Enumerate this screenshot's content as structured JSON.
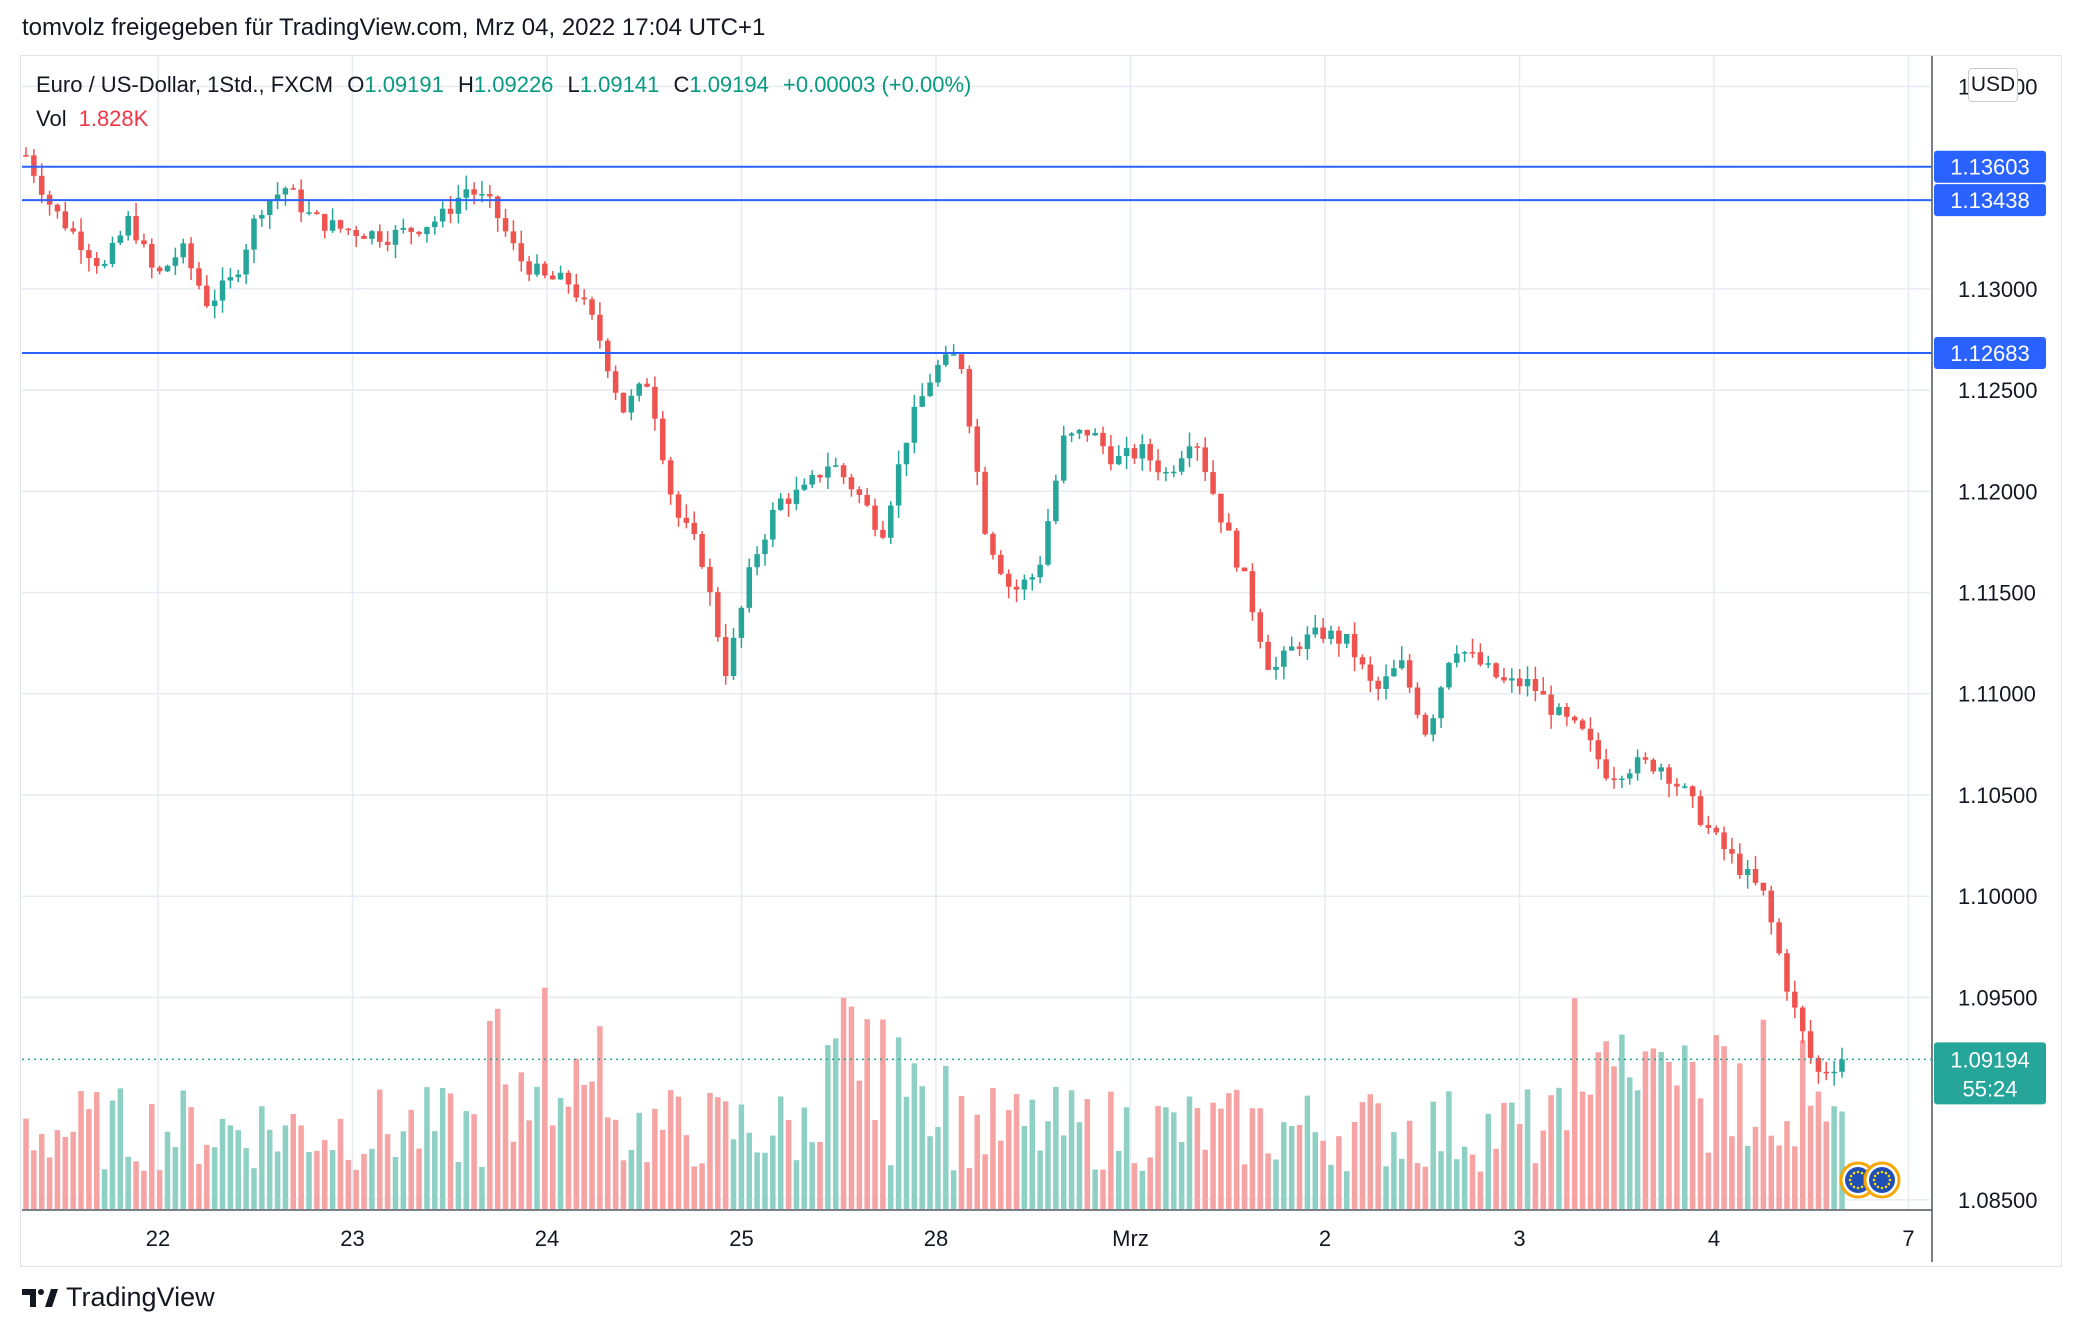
{
  "header": {
    "text": "tomvolz freigegeben für TradingView.com, Mrz 04, 2022 17:04 UTC+1"
  },
  "legend": {
    "symbol": "Euro / US-Dollar, 1Std., FXCM",
    "open_label": "O",
    "open": "1.09191",
    "high_label": "H",
    "high": "1.09226",
    "low_label": "L",
    "low": "1.09141",
    "close_label": "C",
    "close": "1.09194",
    "change": "+0.00003 (+0.00%)"
  },
  "volume_legend": {
    "label": "Vol",
    "value": "1.828K"
  },
  "currency": "USD",
  "price_tag": {
    "price": "1.09194",
    "countdown": "55:24"
  },
  "colors": {
    "up": "#26a69a",
    "down": "#ef5350",
    "up_vol": "#8fd0c5",
    "down_vol": "#f5a3a3",
    "hline": "#2962ff",
    "grid": "#e6ecf2"
  },
  "footer": {
    "brand": "TradingView"
  },
  "chart_data": {
    "type": "candlestick",
    "title": "Euro / US-Dollar, 1Std., FXCM",
    "y_axis_ticks": [
      "1.14000",
      "1.13000",
      "1.12500",
      "1.12000",
      "1.11500",
      "1.11000",
      "1.10500",
      "1.10000",
      "1.09500",
      "1.08500"
    ],
    "ylim": [
      1.0845,
      1.1415
    ],
    "x_axis_ticks": [
      "22",
      "23",
      "24",
      "25",
      "28",
      "Mrz",
      "2",
      "3",
      "4",
      "7"
    ],
    "horizontal_lines": [
      {
        "price": 1.13603,
        "label": "1.13603"
      },
      {
        "price": 1.13438,
        "label": "1.13438"
      },
      {
        "price": 1.12683,
        "label": "1.12683"
      }
    ],
    "last_price": 1.09194,
    "grid": true,
    "close_path": [
      [
        0,
        1.1366
      ],
      [
        10,
        1.134
      ],
      [
        20,
        1.1325
      ],
      [
        30,
        1.131
      ],
      [
        40,
        1.1335
      ],
      [
        50,
        1.1305
      ],
      [
        60,
        1.132
      ],
      [
        70,
        1.1293
      ],
      [
        80,
        1.1305
      ],
      [
        90,
        1.134
      ],
      [
        100,
        1.135
      ],
      [
        110,
        1.1335
      ],
      [
        120,
        1.133
      ],
      [
        130,
        1.1328
      ],
      [
        140,
        1.1326
      ],
      [
        150,
        1.133
      ],
      [
        160,
        1.1335
      ],
      [
        170,
        1.135
      ],
      [
        180,
        1.134
      ],
      [
        190,
        1.1315
      ],
      [
        200,
        1.1305
      ],
      [
        210,
        1.1303
      ],
      [
        220,
        1.128
      ],
      [
        230,
        1.124
      ],
      [
        240,
        1.1255
      ],
      [
        250,
        1.119
      ],
      [
        260,
        1.117
      ],
      [
        270,
        1.111
      ],
      [
        280,
        1.1165
      ],
      [
        290,
        1.1195
      ],
      [
        300,
        1.12
      ],
      [
        310,
        1.1215
      ],
      [
        320,
        1.12
      ],
      [
        330,
        1.118
      ],
      [
        340,
        1.123
      ],
      [
        350,
        1.126
      ],
      [
        360,
        1.1268
      ],
      [
        370,
        1.118
      ],
      [
        380,
        1.115
      ],
      [
        390,
        1.116
      ],
      [
        400,
        1.1225
      ],
      [
        410,
        1.123
      ],
      [
        420,
        1.1215
      ],
      [
        430,
        1.122
      ],
      [
        440,
        1.1208
      ],
      [
        450,
        1.123
      ],
      [
        460,
        1.119
      ],
      [
        470,
        1.1155
      ],
      [
        480,
        1.111
      ],
      [
        490,
        1.1125
      ],
      [
        500,
        1.113
      ],
      [
        510,
        1.1125
      ],
      [
        520,
        1.11
      ],
      [
        530,
        1.1115
      ],
      [
        540,
        1.108
      ],
      [
        550,
        1.1125
      ],
      [
        560,
        1.1115
      ],
      [
        570,
        1.1105
      ],
      [
        580,
        1.1105
      ],
      [
        590,
        1.109
      ],
      [
        600,
        1.108
      ],
      [
        610,
        1.106
      ],
      [
        620,
        1.1065
      ],
      [
        630,
        1.1065
      ],
      [
        640,
        1.105
      ],
      [
        650,
        1.103
      ],
      [
        660,
        1.1015
      ],
      [
        670,
        1.1
      ],
      [
        680,
        1.095
      ],
      [
        690,
        1.0912
      ],
      [
        700,
        1.0919
      ]
    ],
    "x_gap_after": 360,
    "volume_ylim": [
      0,
      1.0
    ]
  }
}
